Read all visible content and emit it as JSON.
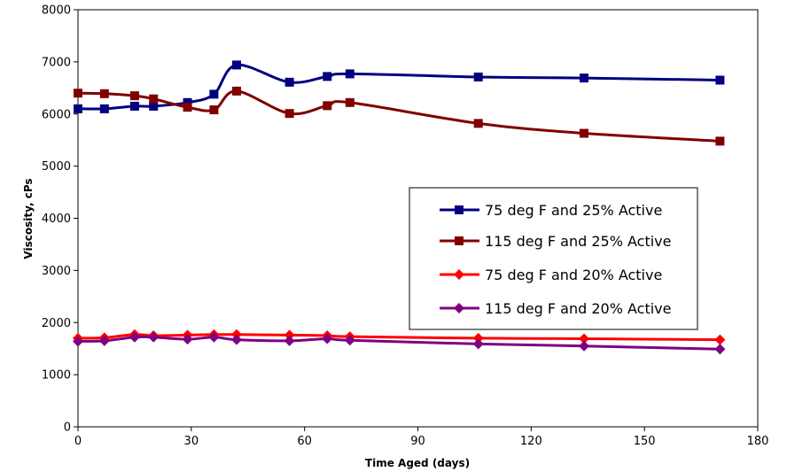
{
  "chart_data": {
    "type": "line",
    "title": "",
    "xlabel": "Time Aged (days)",
    "ylabel": "Viscosity, cPs",
    "xlim": [
      0,
      180
    ],
    "ylim": [
      0,
      8000
    ],
    "x_ticks": [
      0,
      30,
      60,
      90,
      120,
      150,
      180
    ],
    "y_ticks": [
      0,
      1000,
      2000,
      3000,
      4000,
      5000,
      6000,
      7000,
      8000
    ],
    "x_tick_labels": [
      "0",
      "30",
      "60",
      "90",
      "120",
      "150",
      "180"
    ],
    "y_tick_labels": [
      "0",
      "1000",
      "2000",
      "3000",
      "4000",
      "5000",
      "6000",
      "7000",
      "8000"
    ],
    "grid": false,
    "legend_position": "right",
    "series": [
      {
        "name": "75 deg F and 25% Active",
        "color": "#000080",
        "marker": "square",
        "x": [
          0,
          7,
          15,
          20,
          29,
          36,
          42,
          56,
          66,
          72,
          106,
          134,
          170
        ],
        "y": [
          6100,
          6100,
          6150,
          6150,
          6220,
          6380,
          6940,
          6610,
          6720,
          6770,
          6710,
          6690,
          6650
        ]
      },
      {
        "name": "115 deg F and 25% Active",
        "color": "#800000",
        "marker": "square",
        "x": [
          0,
          7,
          15,
          20,
          29,
          36,
          42,
          56,
          66,
          72,
          106,
          134,
          170
        ],
        "y": [
          6400,
          6390,
          6350,
          6290,
          6130,
          6080,
          6440,
          6010,
          6160,
          6220,
          5820,
          5630,
          5480
        ]
      },
      {
        "name": "75 deg F and 20% Active",
        "color": "#ff0000",
        "marker": "diamond",
        "x": [
          0,
          7,
          15,
          20,
          29,
          36,
          42,
          56,
          66,
          72,
          106,
          134,
          170
        ],
        "y": [
          1700,
          1710,
          1770,
          1750,
          1760,
          1770,
          1770,
          1760,
          1750,
          1730,
          1700,
          1690,
          1670
        ]
      },
      {
        "name": "115 deg F and 20% Active",
        "color": "#800080",
        "marker": "diamond",
        "x": [
          0,
          7,
          15,
          20,
          29,
          36,
          42,
          56,
          66,
          72,
          106,
          134,
          170
        ],
        "y": [
          1640,
          1650,
          1720,
          1720,
          1680,
          1720,
          1670,
          1650,
          1690,
          1660,
          1590,
          1550,
          1490
        ]
      }
    ]
  }
}
